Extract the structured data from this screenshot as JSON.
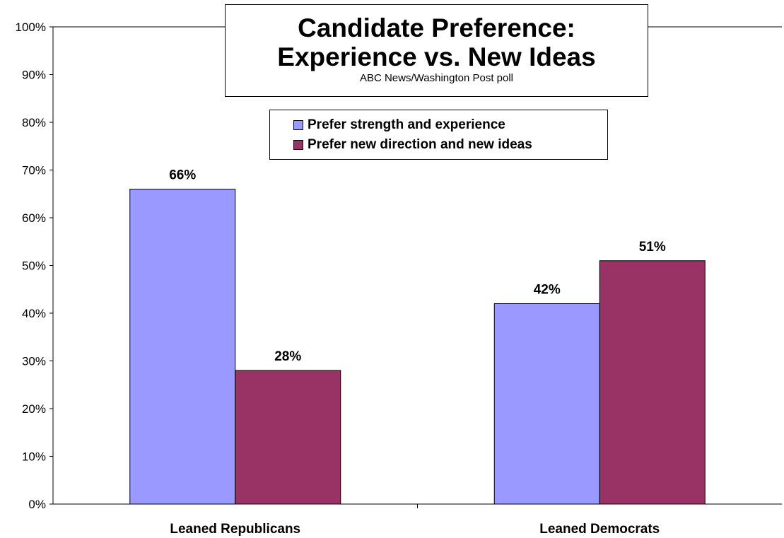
{
  "chart_data": {
    "type": "bar",
    "title": "Candidate Preference:",
    "title_line2": "Experience vs. New Ideas",
    "subtitle": "ABC News/Washington Post poll",
    "categories": [
      "Leaned Republicans",
      "Leaned Democrats"
    ],
    "series": [
      {
        "name": "Prefer strength and experience",
        "values": [
          66,
          42
        ],
        "color": "#9999FF"
      },
      {
        "name": "Prefer new direction and new ideas",
        "values": [
          28,
          51
        ],
        "color": "#993366"
      }
    ],
    "data_labels": [
      [
        "66%",
        "42%"
      ],
      [
        "28%",
        "51%"
      ]
    ],
    "ylim": [
      0,
      100
    ],
    "y_ticks": [
      "0%",
      "10%",
      "20%",
      "30%",
      "40%",
      "50%",
      "60%",
      "70%",
      "80%",
      "90%",
      "100%"
    ],
    "y_tick_values": [
      0,
      10,
      20,
      30,
      40,
      50,
      60,
      70,
      80,
      90,
      100
    ],
    "grid": false,
    "legend_position": "top-center"
  }
}
